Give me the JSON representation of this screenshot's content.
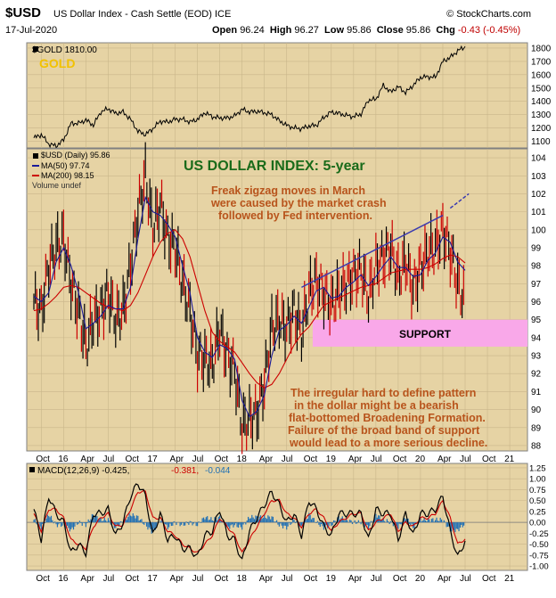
{
  "header": {
    "symbol": "$USD",
    "description": "US Dollar Index - Cash Settle (EOD) ICE",
    "brand": "© StockCharts.com",
    "date": "17-Jul-2020",
    "open_label": "Open",
    "open_value": "96.24",
    "high_label": "High",
    "high_value": "96.27",
    "low_label": "Low",
    "low_value": "95.86",
    "close_label": "Close",
    "close_value": "95.86",
    "chg_label": "Chg",
    "chg_value": "-0.43 (-0.45%)"
  },
  "colors": {
    "panel_bg": "#e6d3a4",
    "price_line": "#000000",
    "ma50": "#1a1a99",
    "ma200": "#cc0000",
    "down_bar": "#cc0000",
    "up_bar": "#000000",
    "support_band": "#f9a8e9",
    "annotation": "#b8541c",
    "title_green": "#1a6b1a",
    "trendline": "#3b3bb0",
    "macd_hist": "#1f6fb4"
  },
  "chart_data": [
    {
      "type": "line",
      "title": "$GOLD 1810.00",
      "panel_label": "GOLD",
      "series": [
        {
          "name": "$GOLD",
          "x": [
            "2015-09",
            "2015-10",
            "2015-11",
            "2015-12",
            "2016-01",
            "2016-02",
            "2016-03",
            "2016-04",
            "2016-05",
            "2016-06",
            "2016-07",
            "2016-08",
            "2016-09",
            "2016-10",
            "2016-11",
            "2016-12",
            "2017-01",
            "2017-02",
            "2017-03",
            "2017-04",
            "2017-05",
            "2017-06",
            "2017-07",
            "2017-08",
            "2017-09",
            "2017-10",
            "2017-11",
            "2017-12",
            "2018-01",
            "2018-02",
            "2018-03",
            "2018-04",
            "2018-05",
            "2018-06",
            "2018-07",
            "2018-08",
            "2018-09",
            "2018-10",
            "2018-11",
            "2018-12",
            "2019-01",
            "2019-02",
            "2019-03",
            "2019-04",
            "2019-05",
            "2019-06",
            "2019-07",
            "2019-08",
            "2019-09",
            "2019-10",
            "2019-11",
            "2019-12",
            "2020-01",
            "2020-02",
            "2020-03",
            "2020-04",
            "2020-05",
            "2020-06",
            "2020-07"
          ],
          "values": [
            1125,
            1150,
            1080,
            1065,
            1110,
            1235,
            1235,
            1260,
            1220,
            1320,
            1345,
            1310,
            1320,
            1265,
            1175,
            1150,
            1195,
            1250,
            1245,
            1265,
            1265,
            1245,
            1265,
            1315,
            1285,
            1275,
            1275,
            1290,
            1340,
            1320,
            1325,
            1315,
            1300,
            1255,
            1220,
            1200,
            1195,
            1215,
            1220,
            1280,
            1320,
            1310,
            1295,
            1285,
            1305,
            1410,
            1415,
            1520,
            1470,
            1510,
            1465,
            1520,
            1580,
            1585,
            1580,
            1700,
            1730,
            1780,
            1810
          ]
        }
      ],
      "y_ticks": [
        1100,
        1200,
        1300,
        1400,
        1500,
        1600,
        1700,
        1800
      ],
      "ylim": [
        1050,
        1840
      ]
    },
    {
      "type": "line",
      "title": "US DOLLAR INDEX: 5-year",
      "legend": [
        "$USD (Daily) 95.86",
        "MA(50) 97.74",
        "MA(200) 98.15",
        "Volume undef"
      ],
      "series": [
        {
          "name": "$USD (Daily)",
          "x": [
            "2015-09",
            "2015-10",
            "2015-11",
            "2015-12",
            "2016-01",
            "2016-02",
            "2016-03",
            "2016-04",
            "2016-05",
            "2016-06",
            "2016-07",
            "2016-08",
            "2016-09",
            "2016-10",
            "2016-11",
            "2016-12",
            "2017-01",
            "2017-02",
            "2017-03",
            "2017-04",
            "2017-05",
            "2017-06",
            "2017-07",
            "2017-08",
            "2017-09",
            "2017-10",
            "2017-11",
            "2017-12",
            "2018-01",
            "2018-02",
            "2018-03",
            "2018-04",
            "2018-05",
            "2018-06",
            "2018-07",
            "2018-08",
            "2018-09",
            "2018-10",
            "2018-11",
            "2018-12",
            "2019-01",
            "2019-02",
            "2019-03",
            "2019-04",
            "2019-05",
            "2019-06",
            "2019-07",
            "2019-08",
            "2019-09",
            "2019-10",
            "2019-11",
            "2019-12",
            "2020-01",
            "2020-02",
            "2020-03",
            "2020-04",
            "2020-05",
            "2020-06",
            "2020-07"
          ],
          "values": [
            96.0,
            95.5,
            98.0,
            99.0,
            99.5,
            97.0,
            95.5,
            93.5,
            95.0,
            95.5,
            96.5,
            95.0,
            95.5,
            98.0,
            101.0,
            103.0,
            100.0,
            101.5,
            99.5,
            99.0,
            97.0,
            95.5,
            93.0,
            92.8,
            92.5,
            94.5,
            93.0,
            92.2,
            89.0,
            89.5,
            89.8,
            91.5,
            94.5,
            95.0,
            94.5,
            95.5,
            94.2,
            96.5,
            97.2,
            96.5,
            95.8,
            96.5,
            97.0,
            97.5,
            97.8,
            96.2,
            98.0,
            98.5,
            99.0,
            97.3,
            98.3,
            96.7,
            97.9,
            98.8,
            99.0,
            100.0,
            98.8,
            97.0,
            95.86
          ]
        },
        {
          "name": "MA(50)",
          "values": [
            96.3,
            96.0,
            96.5,
            98.2,
            99.0,
            98.0,
            96.5,
            94.5,
            94.8,
            95.2,
            95.8,
            95.6,
            95.6,
            96.8,
            99.5,
            101.8,
            101.0,
            100.8,
            100.3,
            99.6,
            98.0,
            96.5,
            94.0,
            93.2,
            92.9,
            93.6,
            93.4,
            92.8,
            90.5,
            89.6,
            89.9,
            90.8,
            93.0,
            94.4,
            94.7,
            95.2,
            94.8,
            95.7,
            96.6,
            96.8,
            96.2,
            96.3,
            96.8,
            97.1,
            97.5,
            96.9,
            97.4,
            98.0,
            98.5,
            97.9,
            97.9,
            97.4,
            97.5,
            98.3,
            98.7,
            99.6,
            99.3,
            98.2,
            97.74
          ]
        },
        {
          "name": "MA(200)",
          "values": [
            95.5,
            95.6,
            95.9,
            96.3,
            96.8,
            96.9,
            96.8,
            96.5,
            96.2,
            95.9,
            95.7,
            95.6,
            95.5,
            95.8,
            96.5,
            97.5,
            98.5,
            99.3,
            99.8,
            100.0,
            99.5,
            98.5,
            97.0,
            95.5,
            94.3,
            93.8,
            93.5,
            93.2,
            92.6,
            92.0,
            91.5,
            91.2,
            91.4,
            92.0,
            92.8,
            93.6,
            94.2,
            94.6,
            95.2,
            95.8,
            96.0,
            96.2,
            96.4,
            96.6,
            96.8,
            96.9,
            97.0,
            97.3,
            97.6,
            97.7,
            97.8,
            97.8,
            97.8,
            97.9,
            98.1,
            98.4,
            98.6,
            98.5,
            98.15
          ]
        }
      ],
      "x_ticks": [
        "Oct",
        "16",
        "Apr",
        "Jul",
        "Oct",
        "17",
        "Apr",
        "Jul",
        "Oct",
        "18",
        "Apr",
        "Jul",
        "Oct",
        "19",
        "Apr",
        "Jul",
        "Oct",
        "20",
        "Apr",
        "Jul",
        "Oct",
        "21"
      ],
      "y_ticks": [
        88,
        89,
        90,
        91,
        92,
        93,
        94,
        95,
        96,
        97,
        98,
        99,
        100,
        101,
        102,
        103,
        104
      ],
      "ylim": [
        87.7,
        104.5
      ],
      "support_band": [
        93.5,
        95.0
      ],
      "support_label": "SUPPORT",
      "annotations": [
        "Freak zigzag moves in March",
        "were caused by the market crash",
        "followed by Fed intervention.",
        "The irregular hard to define pattern",
        "in the dollar might be a bearish",
        "flat-bottomed Broadening Formation.",
        "Failure of the broad band of support",
        "would lead to a more serious decline."
      ]
    },
    {
      "type": "line",
      "title": "MACD(12,26,9) -0.425, -0.381, -0.044",
      "legend": [
        "MACD(12,26,9) -0.425,",
        "-0.381,",
        "-0.044"
      ],
      "series": [
        {
          "name": "MACD",
          "values": [
            0.3,
            -0.4,
            0.6,
            0.2,
            0.0,
            -0.7,
            -0.5,
            -0.7,
            0.2,
            0.2,
            0.3,
            -0.3,
            0.0,
            0.6,
            0.9,
            0.6,
            -0.3,
            0.2,
            -0.4,
            -0.3,
            -0.6,
            -0.6,
            -0.8,
            -0.3,
            -0.2,
            0.3,
            -0.3,
            -0.4,
            -0.9,
            -0.2,
            0.1,
            0.4,
            0.7,
            0.4,
            0.0,
            0.2,
            -0.3,
            0.5,
            0.3,
            -0.1,
            -0.3,
            0.2,
            0.2,
            0.2,
            0.2,
            -0.4,
            0.3,
            0.2,
            0.2,
            -0.4,
            0.2,
            -0.3,
            0.2,
            0.2,
            0.3,
            0.6,
            -0.2,
            -0.8,
            -0.425
          ]
        },
        {
          "name": "Signal",
          "values": [
            0.2,
            -0.2,
            0.3,
            0.3,
            0.1,
            -0.4,
            -0.5,
            -0.6,
            -0.1,
            0.1,
            0.2,
            -0.1,
            -0.05,
            0.3,
            0.7,
            0.7,
            0.1,
            0.1,
            -0.2,
            -0.3,
            -0.5,
            -0.6,
            -0.7,
            -0.5,
            -0.3,
            0.1,
            -0.1,
            -0.3,
            -0.7,
            -0.4,
            -0.1,
            0.2,
            0.5,
            0.5,
            0.2,
            0.1,
            -0.1,
            0.2,
            0.3,
            0.1,
            -0.2,
            0.0,
            0.1,
            0.2,
            0.2,
            -0.2,
            0.0,
            0.1,
            0.2,
            -0.2,
            0.0,
            -0.1,
            0.1,
            0.1,
            0.2,
            0.5,
            0.1,
            -0.5,
            -0.381
          ]
        }
      ],
      "histogram_last": -0.044,
      "x_ticks": [
        "Oct",
        "16",
        "Apr",
        "Jul",
        "Oct",
        "17",
        "Apr",
        "Jul",
        "Oct",
        "18",
        "Apr",
        "Jul",
        "Oct",
        "19",
        "Apr",
        "Jul",
        "Oct",
        "20",
        "Apr",
        "Jul",
        "Oct",
        "21"
      ],
      "y_ticks": [
        1.25,
        1.0,
        0.75,
        0.5,
        0.25,
        0.0,
        -0.25,
        -0.5,
        -0.75,
        -1.0
      ],
      "y_tick_labels": [
        "1.25",
        "1.00",
        "0.75",
        "0.50",
        "0.25",
        "0.00",
        "-0.25",
        "-0.50",
        "-0.75",
        "-1.00"
      ],
      "ylim": [
        -1.1,
        1.35
      ]
    }
  ]
}
